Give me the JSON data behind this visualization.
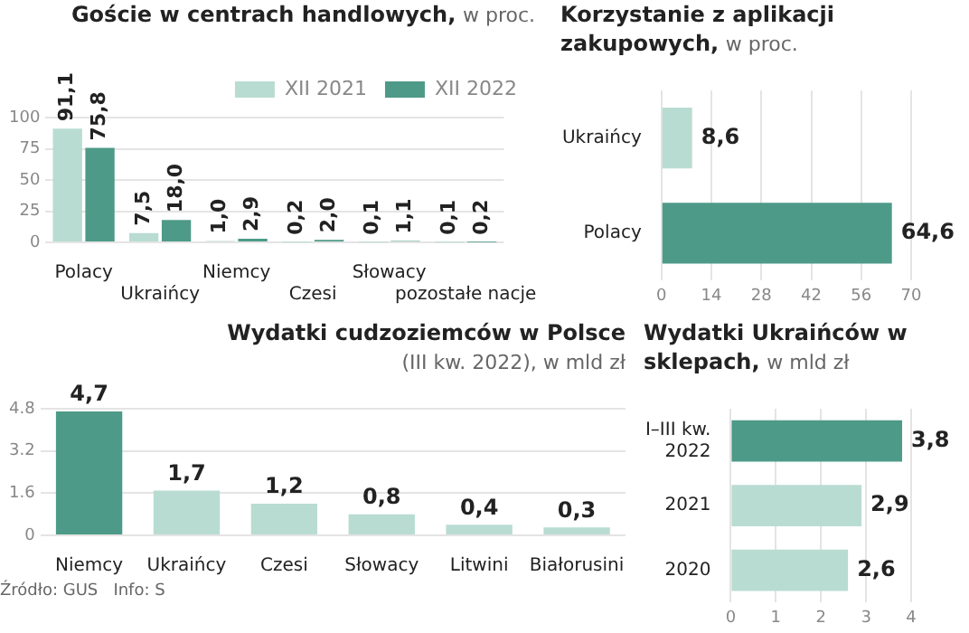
{
  "chart_data": [
    {
      "type": "bar",
      "title": "Goście w centrach handlowych,",
      "subtitle": "w proc.",
      "categories": [
        "Polacy",
        "Ukraińcy",
        "Niemcy",
        "Czesi",
        "Słowacy",
        "pozostałe nacje"
      ],
      "series": [
        {
          "name": "XII 2021",
          "color": "#b9dcd2",
          "values": [
            91.1,
            7.5,
            1.0,
            0.2,
            0.1,
            0.1
          ],
          "value_labels": [
            "91,1",
            "7,5",
            "1,0",
            "0,2",
            "0,1",
            "0,1"
          ]
        },
        {
          "name": "XII 2022",
          "color": "#4e9a88",
          "values": [
            75.8,
            18.0,
            2.9,
            2.0,
            1.1,
            0.2
          ],
          "value_labels": [
            "75,8",
            "18,0",
            "2,9",
            "2,0",
            "1,1",
            "0,2"
          ]
        }
      ],
      "ylim": [
        0,
        100
      ],
      "yticks": [
        0,
        25,
        50,
        75,
        100
      ],
      "grid": "y",
      "legend": "top right"
    },
    {
      "type": "bar",
      "orientation": "horizontal",
      "title": "Korzystanie z aplikacji zakupowych,",
      "subtitle": "w proc.",
      "categories": [
        "Ukraińcy",
        "Polacy"
      ],
      "values": [
        8.6,
        64.6
      ],
      "colors": [
        "#b9dcd2",
        "#4e9a88"
      ],
      "value_labels": [
        "8,6",
        "64,6"
      ],
      "xlim": [
        0,
        70
      ],
      "xticks": [
        0,
        14,
        28,
        42,
        56,
        70
      ],
      "grid": "x"
    },
    {
      "type": "bar",
      "title": "Wydatki cudzoziemców w Polsce",
      "subtitle": "(III kw. 2022), w mld zł",
      "categories": [
        "Niemcy",
        "Ukraińcy",
        "Czesi",
        "Słowacy",
        "Litwini",
        "Białorusini"
      ],
      "values": [
        4.7,
        1.7,
        1.2,
        0.8,
        0.4,
        0.3
      ],
      "colors": [
        "#4e9a88",
        "#b9dcd2",
        "#b9dcd2",
        "#b9dcd2",
        "#b9dcd2",
        "#b9dcd2"
      ],
      "value_labels": [
        "4,7",
        "1,7",
        "1,2",
        "0,8",
        "0,4",
        "0,3"
      ],
      "ylim": [
        0,
        4.8
      ],
      "yticks": [
        0,
        1.6,
        3.2,
        4.8
      ],
      "grid": "y",
      "annotations": [
        "Źródło: GUS   Info: S"
      ]
    },
    {
      "type": "bar",
      "orientation": "horizontal",
      "title": "Wydatki Ukraińców w sklepach,",
      "subtitle": "w mld zł",
      "categories": [
        "I–III kw. 2022",
        "2021",
        "2020"
      ],
      "values": [
        3.8,
        2.9,
        2.6
      ],
      "colors": [
        "#4e9a88",
        "#b9dcd2",
        "#b9dcd2"
      ],
      "value_labels": [
        "3,8",
        "2,9",
        "2,6"
      ],
      "xlim": [
        0,
        4
      ],
      "xticks": [
        0,
        1,
        2,
        3,
        4
      ],
      "grid": "x"
    }
  ]
}
